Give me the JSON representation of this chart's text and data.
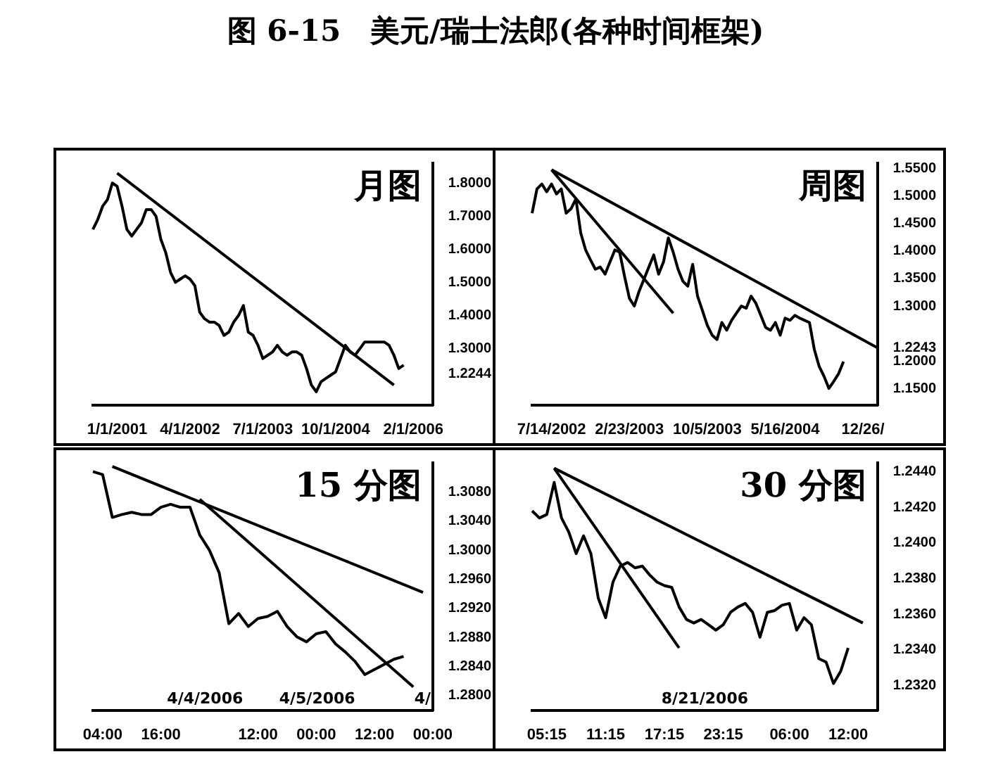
{
  "chart_data": [
    {
      "type": "line",
      "title": "月图",
      "annotations": [
        "图 6-15　美元/瑞士法郎(各种时间框架)"
      ],
      "categories": [
        null,
        null,
        null,
        null,
        null,
        "1/1/2001",
        null,
        null,
        null,
        null,
        null,
        null,
        null,
        null,
        null,
        null,
        null,
        null,
        null,
        null,
        "4/1/2002",
        null,
        null,
        null,
        null,
        null,
        null,
        null,
        null,
        null,
        null,
        null,
        null,
        null,
        null,
        "7/1/2003",
        null,
        null,
        null,
        null,
        null,
        null,
        null,
        null,
        null,
        null,
        null,
        null,
        null,
        null,
        "10/1/2004",
        null,
        null,
        null,
        null,
        null,
        null,
        null,
        null,
        null,
        null,
        null,
        null,
        null,
        null,
        null,
        "2/1/2006",
        null,
        null,
        null,
        null
      ],
      "series": [
        {
          "color": "#000000",
          "values": [
            1.66,
            1.69,
            1.73,
            1.75,
            1.8,
            1.79,
            1.73,
            1.66,
            1.64,
            1.66,
            1.68,
            1.72,
            1.72,
            1.7,
            1.63,
            1.59,
            1.53,
            1.5,
            1.51,
            1.52,
            1.51,
            1.49,
            1.41,
            1.39,
            1.38,
            1.38,
            1.37,
            1.34,
            1.35,
            1.38,
            1.4,
            1.43,
            1.35,
            1.34,
            1.31,
            1.27,
            1.28,
            1.29,
            1.31,
            1.29,
            1.28,
            1.29,
            1.29,
            1.28,
            1.24,
            1.19,
            1.17,
            1.2,
            1.21,
            1.22,
            1.23,
            1.27,
            1.31,
            1.29,
            1.28,
            1.3,
            1.32,
            1.32,
            1.32,
            1.32,
            1.32,
            1.31,
            1.28,
            1.24,
            1.25,
            null,
            null,
            null,
            null,
            null,
            null
          ]
        },
        {
          "color": "#000000",
          "values": [
            null,
            null,
            null,
            null,
            null,
            1.83,
            null,
            null,
            null,
            null,
            null,
            null,
            null,
            null,
            null,
            null,
            null,
            null,
            null,
            null,
            null,
            null,
            null,
            null,
            null,
            null,
            null,
            null,
            null,
            null,
            null,
            null,
            null,
            null,
            null,
            null,
            null,
            null,
            null,
            null,
            null,
            null,
            null,
            null,
            null,
            null,
            null,
            null,
            null,
            null,
            null,
            null,
            null,
            null,
            null,
            null,
            null,
            null,
            null,
            null,
            null,
            null,
            1.19,
            null,
            null,
            null,
            null,
            null,
            null,
            null,
            null
          ]
        }
      ],
      "ylim": [
        1.13,
        1.86
      ],
      "yticks": [
        1.2244,
        {
          "value": 1.3,
          "label": "1.3000"
        },
        {
          "value": 1.4,
          "label": "1.4000"
        },
        {
          "value": 1.5,
          "label": "1.5000"
        },
        {
          "value": 1.6,
          "label": "1.6000"
        },
        {
          "value": 1.7,
          "label": "1.7000"
        },
        {
          "value": 1.8,
          "label": "1.8000"
        }
      ],
      "grid": false,
      "legend": false,
      "marker": "none",
      "line_style": "solid"
    },
    {
      "type": "line",
      "title": "周图",
      "categories": [
        null,
        null,
        null,
        null,
        "7/14/2002",
        null,
        null,
        null,
        null,
        null,
        null,
        null,
        null,
        null,
        null,
        null,
        null,
        null,
        null,
        null,
        "2/23/2003",
        null,
        null,
        null,
        null,
        null,
        null,
        null,
        null,
        null,
        null,
        null,
        null,
        null,
        null,
        null,
        "10/5/2003",
        null,
        null,
        null,
        null,
        null,
        null,
        null,
        null,
        null,
        null,
        null,
        null,
        null,
        null,
        null,
        "5/16/2004",
        null,
        null,
        null,
        null,
        null,
        null,
        null,
        null,
        null,
        null,
        null,
        null,
        null,
        null,
        null,
        "12/26/",
        null,
        null,
        null
      ],
      "series": [
        {
          "color": "#000000",
          "values": [
            1.469,
            1.513,
            1.522,
            1.508,
            1.522,
            1.504,
            1.513,
            1.469,
            1.477,
            1.495,
            1.433,
            1.402,
            1.384,
            1.367,
            1.371,
            1.358,
            1.38,
            1.402,
            1.398,
            1.354,
            1.314,
            1.3,
            1.327,
            1.349,
            1.371,
            1.393,
            1.358,
            1.38,
            1.424,
            1.398,
            1.367,
            1.345,
            1.336,
            1.376,
            1.318,
            1.292,
            1.265,
            1.247,
            1.239,
            1.27,
            1.256,
            1.274,
            1.287,
            1.3,
            1.296,
            1.318,
            1.305,
            1.283,
            1.261,
            1.256,
            1.27,
            1.247,
            1.278,
            1.274,
            1.283,
            1.278,
            1.274,
            1.27,
            1.221,
            1.19,
            1.172,
            1.15,
            1.163,
            1.177,
            1.199,
            null,
            null,
            null,
            null,
            null,
            null,
            null
          ]
        },
        {
          "color": "#000000",
          "values": [
            null,
            null,
            null,
            null,
            1.548,
            null,
            null,
            null,
            null,
            null,
            null,
            null,
            null,
            null,
            null,
            null,
            null,
            null,
            null,
            null,
            null,
            null,
            null,
            null,
            null,
            null,
            null,
            null,
            null,
            null,
            null,
            null,
            null,
            null,
            null,
            null,
            null,
            null,
            null,
            null,
            null,
            null,
            null,
            null,
            null,
            null,
            null,
            null,
            null,
            null,
            null,
            null,
            null,
            null,
            null,
            null,
            null,
            null,
            null,
            null,
            null,
            null,
            null,
            null,
            null,
            null,
            null,
            null,
            null,
            null,
            null,
            1.224
          ]
        },
        {
          "color": "#000000",
          "values": [
            null,
            null,
            null,
            null,
            1.548,
            null,
            null,
            null,
            null,
            null,
            null,
            null,
            null,
            null,
            null,
            null,
            null,
            null,
            null,
            null,
            null,
            null,
            null,
            null,
            null,
            null,
            null,
            null,
            null,
            1.287,
            null,
            null,
            null,
            null,
            null,
            null,
            null,
            null,
            null,
            null,
            null,
            null,
            null,
            null,
            null,
            null,
            null,
            null,
            null,
            null,
            null,
            null,
            null,
            null,
            null,
            null,
            null,
            null,
            null,
            null,
            null,
            null,
            null,
            null,
            null,
            null,
            null,
            null,
            null,
            null,
            null,
            null
          ]
        }
      ],
      "ylim": [
        1.12,
        1.56
      ],
      "yticks": [
        {
          "value": 1.15,
          "label": "1.1500"
        },
        {
          "value": 1.2,
          "label": "1.2000"
        },
        1.2243,
        {
          "value": 1.3,
          "label": "1.3000"
        },
        {
          "value": 1.35,
          "label": "1.3500"
        },
        {
          "value": 1.4,
          "label": "1.4000"
        },
        {
          "value": 1.45,
          "label": "1.4500"
        },
        {
          "value": 1.5,
          "label": "1.5000"
        },
        {
          "value": 1.55,
          "label": "1.5500"
        }
      ],
      "grid": false,
      "legend": false,
      "marker": "none",
      "line_style": "solid"
    },
    {
      "type": "line",
      "title": "15 分图",
      "annotations": [
        "4/4/2006",
        "4/5/2006",
        "4/"
      ],
      "categories": [
        null,
        "04:00",
        null,
        null,
        null,
        null,
        null,
        "16:00",
        null,
        null,
        null,
        null,
        null,
        null,
        null,
        null,
        null,
        "12:00",
        null,
        null,
        null,
        null,
        null,
        "00:00",
        null,
        null,
        null,
        null,
        null,
        "12:00",
        null,
        null,
        null,
        null,
        null,
        "00:00"
      ],
      "series": [
        {
          "color": "#000000",
          "values": [
            1.3108,
            1.3104,
            1.3045,
            1.3049,
            1.3052,
            1.3049,
            1.3049,
            1.3059,
            1.3063,
            1.3059,
            1.3059,
            1.3021,
            1.3,
            1.2969,
            1.2899,
            1.2913,
            1.2895,
            1.2906,
            1.2909,
            1.2916,
            1.2895,
            1.2881,
            1.2874,
            1.2885,
            1.2888,
            1.2871,
            1.286,
            1.2847,
            1.2829,
            1.2836,
            1.2843,
            1.285,
            1.2854,
            null,
            null,
            null
          ]
        },
        {
          "color": "#000000",
          "values": [
            null,
            null,
            1.3115,
            null,
            null,
            null,
            null,
            null,
            null,
            null,
            null,
            null,
            null,
            null,
            null,
            null,
            null,
            null,
            null,
            null,
            null,
            null,
            null,
            null,
            null,
            null,
            null,
            null,
            null,
            null,
            null,
            null,
            null,
            null,
            1.2942,
            null
          ]
        },
        {
          "color": "#000000",
          "values": [
            null,
            null,
            null,
            null,
            null,
            null,
            null,
            null,
            null,
            null,
            null,
            1.307,
            null,
            null,
            null,
            null,
            null,
            null,
            null,
            null,
            null,
            null,
            null,
            null,
            null,
            null,
            null,
            null,
            null,
            null,
            null,
            null,
            null,
            1.2812,
            null,
            null
          ]
        }
      ],
      "ylim": [
        1.278,
        1.312
      ],
      "yticks": [
        {
          "value": 1.28,
          "label": "1.2800"
        },
        {
          "value": 1.284,
          "label": "1.2840"
        },
        {
          "value": 1.288,
          "label": "1.2880"
        },
        {
          "value": 1.292,
          "label": "1.2920"
        },
        {
          "value": 1.296,
          "label": "1.2960"
        },
        {
          "value": 1.3,
          "label": "1.3000"
        },
        {
          "value": 1.304,
          "label": "1.3040"
        },
        {
          "value": 1.308,
          "label": "1.3080"
        }
      ],
      "grid": false,
      "legend": false,
      "marker": "none",
      "line_style": "solid"
    },
    {
      "type": "line",
      "title": "30 分图",
      "annotations": [
        "8/21/2006"
      ],
      "categories": [
        null,
        null,
        "05:15",
        null,
        null,
        null,
        null,
        null,
        null,
        null,
        "11:15",
        null,
        null,
        null,
        null,
        null,
        null,
        null,
        "17:15",
        null,
        null,
        null,
        null,
        null,
        null,
        null,
        "23:15",
        null,
        null,
        null,
        null,
        null,
        null,
        null,
        null,
        "06:00",
        null,
        null,
        null,
        null,
        null,
        null,
        null,
        "12:00",
        null,
        null,
        null,
        null
      ],
      "series": [
        {
          "color": "#000000",
          "values": [
            1.2418,
            1.2414,
            1.2416,
            1.2434,
            1.2414,
            1.2406,
            1.2394,
            1.2404,
            1.2394,
            1.2369,
            1.2358,
            1.2378,
            1.2387,
            1.2389,
            1.2386,
            1.2387,
            1.2382,
            1.2378,
            1.2376,
            1.2375,
            1.2364,
            1.2357,
            1.2355,
            1.2357,
            1.2354,
            1.2351,
            1.2354,
            1.2361,
            1.2364,
            1.2366,
            1.2361,
            1.2347,
            1.2361,
            1.2362,
            1.2365,
            1.2366,
            1.2351,
            1.2358,
            1.2354,
            1.2335,
            1.2333,
            1.2321,
            1.2328,
            1.2341,
            null,
            null,
            null,
            null
          ]
        },
        {
          "color": "#000000",
          "values": [
            null,
            null,
            null,
            1.2442,
            null,
            null,
            null,
            null,
            null,
            null,
            null,
            null,
            null,
            null,
            null,
            null,
            null,
            null,
            null,
            null,
            null,
            null,
            null,
            null,
            null,
            null,
            null,
            null,
            null,
            null,
            null,
            null,
            null,
            null,
            null,
            null,
            null,
            null,
            null,
            null,
            null,
            null,
            null,
            null,
            null,
            1.2355,
            null,
            null
          ]
        },
        {
          "color": "#000000",
          "values": [
            null,
            null,
            null,
            1.2442,
            null,
            null,
            null,
            null,
            null,
            null,
            null,
            null,
            null,
            null,
            null,
            null,
            null,
            null,
            null,
            null,
            1.2341,
            null,
            null,
            null,
            null,
            null,
            null,
            null,
            null,
            null,
            null,
            null,
            null,
            null,
            null,
            null,
            null,
            null,
            null,
            null,
            null,
            null,
            null,
            null,
            null,
            null,
            null,
            null
          ]
        }
      ],
      "ylim": [
        1.2306,
        1.2445
      ],
      "yticks": [
        {
          "value": 1.232,
          "label": "1.2320"
        },
        {
          "value": 1.234,
          "label": "1.2340"
        },
        {
          "value": 1.236,
          "label": "1.2360"
        },
        {
          "value": 1.238,
          "label": "1.2380"
        },
        {
          "value": 1.24,
          "label": "1.2400"
        },
        {
          "value": 1.242,
          "label": "1.2420"
        },
        {
          "value": 1.244,
          "label": "1.2440"
        }
      ],
      "grid": false,
      "legend": false,
      "marker": "none",
      "line_style": "solid"
    }
  ]
}
